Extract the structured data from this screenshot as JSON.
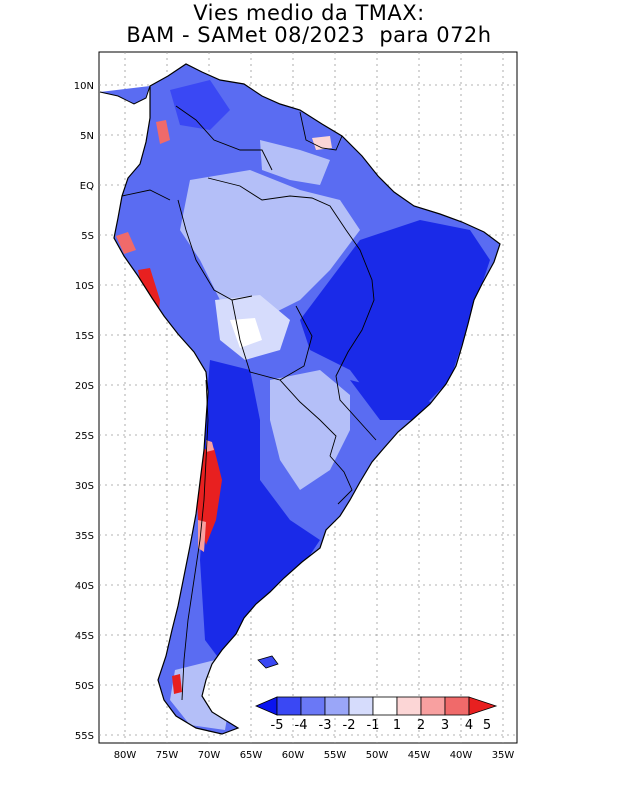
{
  "title": {
    "line1": "Vies medio da TMAX:",
    "line2": "BAM - SAMet 08/2023  para 072h"
  },
  "axes": {
    "lat_labels": [
      "10N",
      "5N",
      "EQ",
      "5S",
      "10S",
      "15S",
      "20S",
      "25S",
      "30S",
      "35S",
      "40S",
      "45S",
      "50S",
      "55S"
    ],
    "lon_labels": [
      "80W",
      "75W",
      "70W",
      "65W",
      "60W",
      "55W",
      "50W",
      "45W",
      "40W",
      "35W"
    ]
  },
  "colorbar": {
    "labels": [
      "-5",
      "-4",
      "-3",
      "-2",
      "-1",
      "1",
      "2",
      "3",
      "4",
      "5"
    ],
    "colors": [
      "#0a14f0",
      "#3a48f4",
      "#6a78f6",
      "#9aa6f8",
      "#d6dcfc",
      "#ffffff",
      "#fcd6d6",
      "#f8a0a0",
      "#f06a6a",
      "#e82020"
    ]
  },
  "colors": {
    "land_strong_blue": "#1a2ae8",
    "land_mid_blue": "#5a6cf2",
    "land_light_blue": "#b4bff8",
    "andes_red": "#e82020",
    "border": "#000000",
    "grid": "#9a9a9a"
  }
}
